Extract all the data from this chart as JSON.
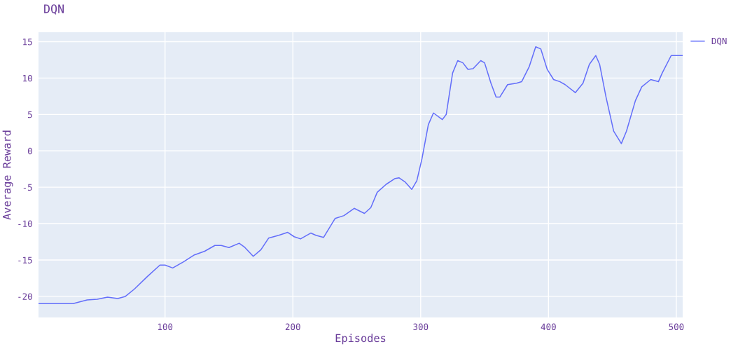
{
  "chart_data": {
    "type": "line",
    "title": "DQN",
    "xlabel": "Episodes",
    "ylabel": "Average Reward",
    "xlim": [
      1,
      505
    ],
    "ylim": [
      -22.9,
      16.3
    ],
    "xticks": [
      100,
      200,
      300,
      400,
      500
    ],
    "yticks": [
      -20,
      -15,
      -10,
      -5,
      0,
      5,
      10,
      15
    ],
    "grid": true,
    "legend": "top right",
    "series": [
      {
        "name": "DQN",
        "color": "#636efa",
        "x": [
          1,
          28,
          39,
          47,
          55,
          63,
          69,
          76,
          86,
          96,
          100,
          106,
          114,
          123,
          131,
          139,
          144,
          150,
          158,
          162,
          169,
          175,
          181,
          189,
          196,
          201,
          206,
          214,
          218,
          224,
          233,
          240,
          248,
          256,
          261,
          266,
          273,
          280,
          283,
          288,
          293,
          297,
          301,
          306,
          310,
          317,
          320,
          325,
          329,
          333,
          337,
          341,
          347,
          350,
          355,
          359,
          362,
          368,
          375,
          379,
          385,
          390,
          394,
          399,
          404,
          409,
          413,
          421,
          427,
          432,
          437,
          440,
          445,
          451,
          457,
          461,
          468,
          473,
          480,
          486,
          489,
          496,
          505
        ],
        "values": [
          -21,
          -21,
          -20.5,
          -20.4,
          -20.1,
          -20.3,
          -20,
          -19,
          -17.3,
          -15.7,
          -15.7,
          -16.1,
          -15.3,
          -14.3,
          -13.8,
          -13,
          -13,
          -13.3,
          -12.7,
          -13.2,
          -14.5,
          -13.6,
          -12,
          -11.6,
          -11.2,
          -11.8,
          -12.1,
          -11.3,
          -11.6,
          -11.9,
          -9.3,
          -8.9,
          -7.9,
          -8.6,
          -7.8,
          -5.7,
          -4.6,
          -3.8,
          -3.7,
          -4.3,
          -5.3,
          -4.1,
          -1.1,
          3.6,
          5.2,
          4.3,
          5,
          10.7,
          12.4,
          12.1,
          11.2,
          11.3,
          12.4,
          12.1,
          9.3,
          7.4,
          7.4,
          9.1,
          9.3,
          9.5,
          11.6,
          14.3,
          14,
          11.2,
          9.8,
          9.5,
          9.1,
          8,
          9.3,
          11.9,
          13.1,
          11.9,
          7.4,
          2.7,
          1,
          2.7,
          6.9,
          8.8,
          9.8,
          9.5,
          10.7,
          13.1,
          13.1
        ]
      }
    ]
  }
}
